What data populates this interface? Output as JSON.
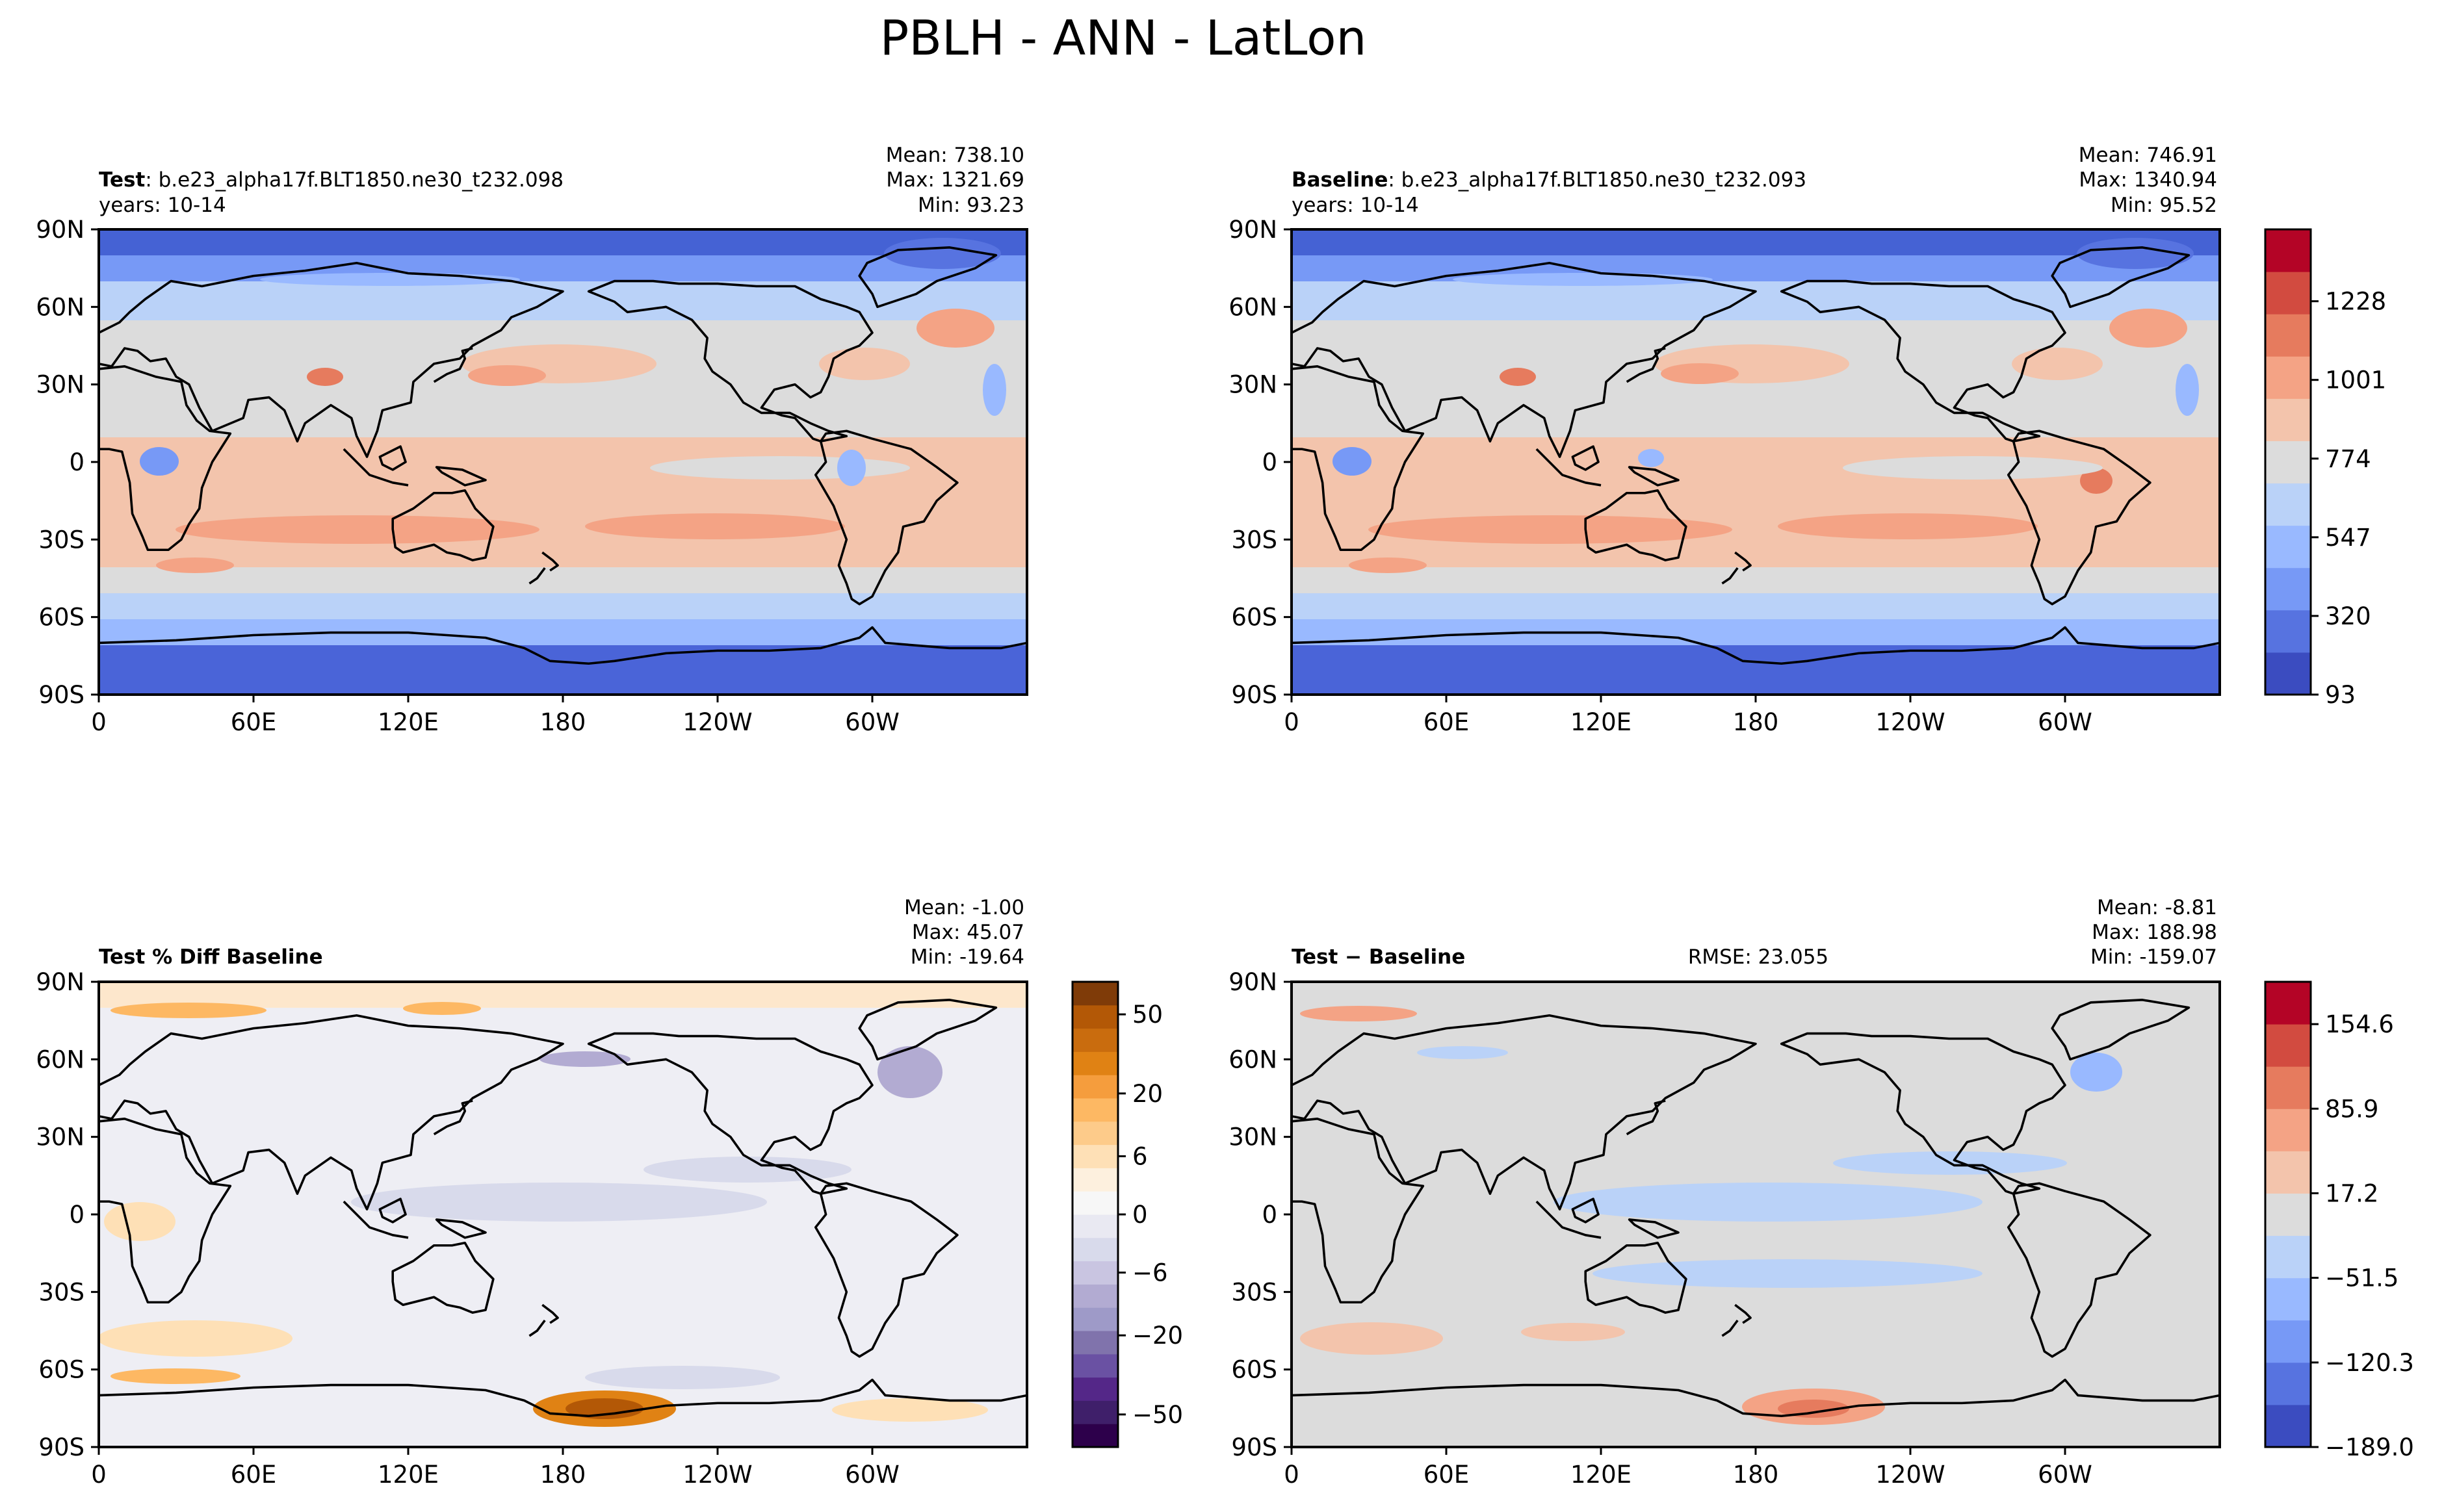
{
  "figure_title": "PBLH - ANN - LatLon",
  "colors": {
    "cool_warm": [
      "#3b4cc0",
      "#5773e0",
      "#7799f6",
      "#99b9ff",
      "#bad2f8",
      "#dcdcdc",
      "#f3c4ac",
      "#f4a385",
      "#e67b5e",
      "#d24b40",
      "#b40426"
    ],
    "pct_diff": [
      "#2d004b",
      "#542788",
      "#8073ac",
      "#b2abd2",
      "#d8daeb",
      "#f7f7f7",
      "#fee0b6",
      "#fdb863",
      "#e08214",
      "#b35806",
      "#7f3b08"
    ],
    "land_outline": "#000000"
  },
  "chart_data": [
    {
      "type": "heatmap",
      "panel": "test",
      "title_bold": "Test",
      "title_rest": ": b.e23_alpha17f.BLT1850.ne30_t232.098",
      "years": "years: 10-14",
      "stats": [
        "Mean: 738.10",
        "Max: 1321.69",
        "Min: 93.23"
      ],
      "x_ticks": [
        "0",
        "60E",
        "120E",
        "180",
        "120W",
        "60W"
      ],
      "y_ticks": [
        "90N",
        "60N",
        "30N",
        "0",
        "30S",
        "60S",
        "90S"
      ],
      "xlim": [
        0,
        360
      ],
      "ylim": [
        -90,
        90
      ],
      "range": [
        93,
        1328
      ]
    },
    {
      "type": "heatmap",
      "panel": "baseline",
      "title_bold": "Baseline",
      "title_rest": ": b.e23_alpha17f.BLT1850.ne30_t232.093",
      "years": "years: 10-14",
      "stats": [
        "Mean: 746.91",
        "Max: 1340.94",
        "Min: 95.52"
      ],
      "x_ticks": [
        "0",
        "60E",
        "120E",
        "180",
        "120W",
        "60W"
      ],
      "y_ticks": [
        "90N",
        "60N",
        "30N",
        "0",
        "30S",
        "60S",
        "90S"
      ],
      "xlim": [
        0,
        360
      ],
      "ylim": [
        -90,
        90
      ],
      "range": [
        93,
        1328
      ],
      "colorbar_ticks": [
        "1228",
        "1001",
        "774",
        "547",
        "320",
        "93"
      ]
    },
    {
      "type": "heatmap",
      "panel": "pct_diff",
      "title_bold": "Test % Diff Baseline",
      "stats": [
        "Mean: -1.00",
        "Max: 45.07",
        "Min: -19.64"
      ],
      "x_ticks": [
        "0",
        "60E",
        "120E",
        "180",
        "120W",
        "60W"
      ],
      "y_ticks": [
        "90N",
        "60N",
        "30N",
        "0",
        "30S",
        "60S",
        "90S"
      ],
      "xlim": [
        0,
        360
      ],
      "ylim": [
        -90,
        90
      ],
      "colorbar_ticks": [
        "50",
        "20",
        "6",
        "0",
        "−6",
        "−20",
        "−50"
      ]
    },
    {
      "type": "heatmap",
      "panel": "diff",
      "title_bold": "Test − Baseline",
      "rmse": "RMSE: 23.055",
      "stats": [
        "Mean: -8.81",
        "Max: 188.98",
        "Min: -159.07"
      ],
      "x_ticks": [
        "0",
        "60E",
        "120E",
        "180",
        "120W",
        "60W"
      ],
      "y_ticks": [
        "90N",
        "60N",
        "30N",
        "0",
        "30S",
        "60S",
        "90S"
      ],
      "xlim": [
        0,
        360
      ],
      "ylim": [
        -90,
        90
      ],
      "range": [
        -189.0,
        189.0
      ],
      "colorbar_ticks": [
        "154.6",
        "85.9",
        "17.2",
        "−51.5",
        "−120.3",
        "−189.0"
      ]
    }
  ]
}
